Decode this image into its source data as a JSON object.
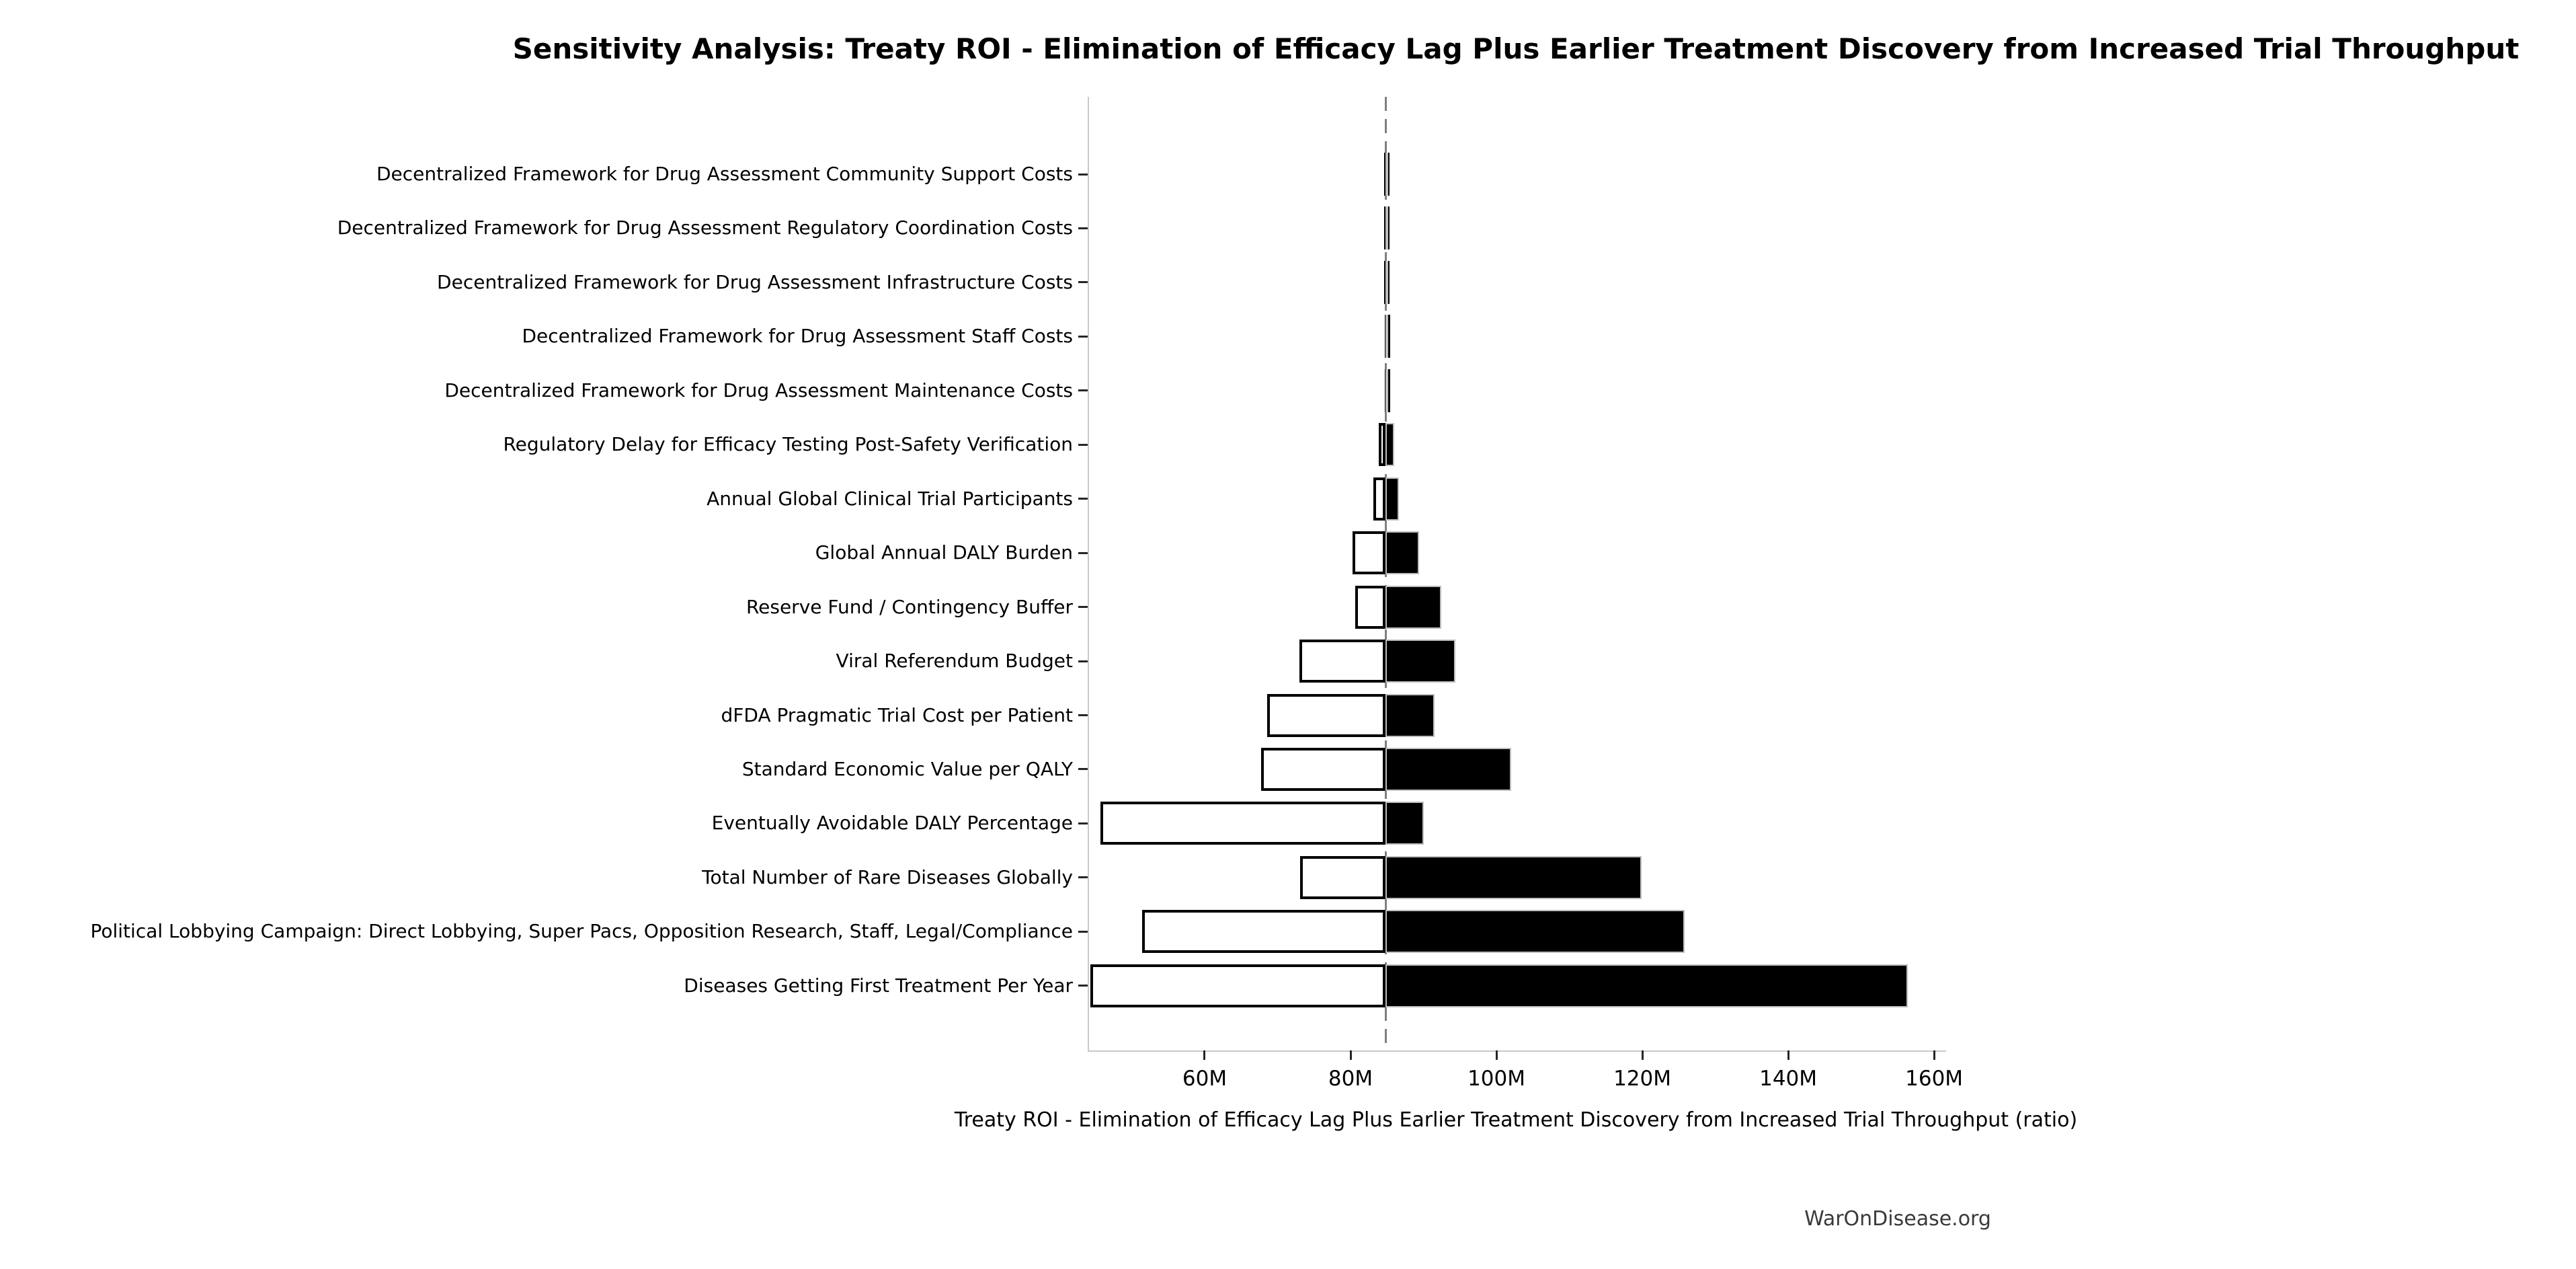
{
  "title": "Sensitivity Analysis: Treaty ROI - Elimination of Efficacy Lag Plus Earlier Treatment Discovery from Increased Trial Throughput",
  "footer": "WarOnDisease.org",
  "colors": {
    "bar_high_fill": "#000000",
    "bar_low_fill": "#ffffff",
    "bar_low_border": "#000000",
    "bar_high_border": "#bdbdbd",
    "baseline_dash": "#7f7f7f",
    "spine": "#c9c9c9",
    "text": "#000000",
    "footer_text": "#3a3a3a"
  },
  "chart_data": {
    "type": "bar",
    "subtype": "tornado-sensitivity-horizontal",
    "title": "Sensitivity Analysis: Treaty ROI - Elimination of Efficacy Lag Plus Earlier Treatment Discovery from Increased Trial Throughput",
    "xlabel": "Treaty ROI - Elimination of Efficacy Lag Plus Earlier Treatment Discovery from Increased Trial Throughput (ratio)",
    "ylabel": "",
    "unit": "M",
    "xlim": [
      44.15,
      161.65
    ],
    "baseline": 84.8,
    "grid": false,
    "legend": null,
    "x_ticks": [
      {
        "value": 60,
        "label": "60M"
      },
      {
        "value": 80,
        "label": "80M"
      },
      {
        "value": 100,
        "label": "100M"
      },
      {
        "value": 120,
        "label": "120M"
      },
      {
        "value": 140,
        "label": "140M"
      },
      {
        "value": 160,
        "label": "160M"
      }
    ],
    "bar_style_note": "low side of baseline drawn hollow (white fill, black outline); high side drawn solid black",
    "rows": [
      {
        "label": "Decentralized Framework for Drug Assessment Community Support Costs",
        "low": 84.62,
        "high": 85.2
      },
      {
        "label": "Decentralized Framework for Drug Assessment Regulatory Coordination Costs",
        "low": 84.63,
        "high": 85.17
      },
      {
        "label": "Decentralized Framework for Drug Assessment Infrastructure Costs",
        "low": 84.65,
        "high": 85.15
      },
      {
        "label": "Decentralized Framework for Drug Assessment Staff Costs",
        "low": 84.67,
        "high": 85.1
      },
      {
        "label": "Decentralized Framework for Drug Assessment Maintenance Costs",
        "low": 84.72,
        "high": 84.98
      },
      {
        "label": "Regulatory Delay for Efficacy Testing Post-Safety Verification",
        "low": 83.85,
        "high": 85.95
      },
      {
        "label": "Annual Global Clinical Trial Participants",
        "low": 83.15,
        "high": 86.65
      },
      {
        "label": "Global Annual DALY Burden",
        "low": 80.3,
        "high": 89.4
      },
      {
        "label": "Reserve Fund / Contingency Buffer",
        "low": 80.6,
        "high": 92.4
      },
      {
        "label": "Viral Referendum Budget",
        "low": 73.0,
        "high": 94.4
      },
      {
        "label": "dFDA Pragmatic Trial Cost per Patient",
        "low": 68.6,
        "high": 91.5
      },
      {
        "label": "Standard Economic Value per QALY",
        "low": 67.7,
        "high": 102.0
      },
      {
        "label": "Eventually Avoidable DALY Percentage",
        "low": 45.7,
        "high": 90.0
      },
      {
        "label": "Total Number of Rare Diseases Globally",
        "low": 73.1,
        "high": 119.9
      },
      {
        "label": "Political Lobbying Campaign: Direct Lobbying, Super Pacs, Opposition Research, Staff, Legal/Compliance",
        "low": 51.4,
        "high": 125.8
      },
      {
        "label": "Diseases Getting First Treatment Per Year",
        "low": 44.3,
        "high": 156.4
      }
    ]
  }
}
